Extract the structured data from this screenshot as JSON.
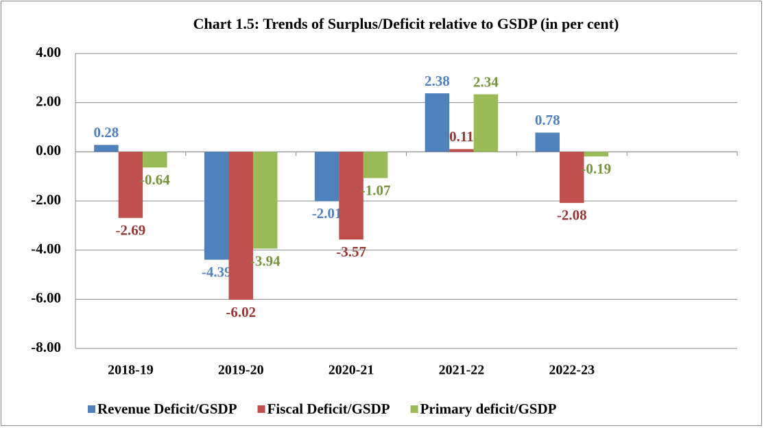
{
  "chart_data": {
    "type": "bar",
    "title": "Chart 1.5: Trends of Surplus/Deficit relative to GSDP (in per cent)",
    "categories": [
      "2018-19",
      "2019-20",
      "2020-21",
      "2021-22",
      "2022-23",
      null
    ],
    "series": [
      {
        "name": "Revenue Deficit/GSDP",
        "color": "#4f81bd",
        "label_color": "#4f81bd",
        "values": [
          0.28,
          -4.39,
          -2.01,
          2.38,
          0.78,
          null
        ]
      },
      {
        "name": "Fiscal Deficit/GSDP",
        "color": "#c0504d",
        "label_color": "#953735",
        "values": [
          -2.69,
          -6.02,
          -3.57,
          0.11,
          -2.08,
          null
        ]
      },
      {
        "name": "Primary deficit/GSDP",
        "color": "#9bbb59",
        "label_color": "#77933c",
        "values": [
          -0.64,
          -3.94,
          -1.07,
          2.34,
          -0.19,
          null
        ]
      }
    ],
    "ylim": [
      -8,
      4
    ],
    "yticks": [
      {
        "value": -8,
        "label": "-8.00"
      },
      {
        "value": -6,
        "label": "-6.00"
      },
      {
        "value": -4,
        "label": "-4.00"
      },
      {
        "value": -2,
        "label": "-2.00"
      },
      {
        "value": 0,
        "label": "0.00"
      },
      {
        "value": 2,
        "label": "2.00"
      },
      {
        "value": 4,
        "label": "4.00"
      }
    ],
    "grid": true,
    "legend": "bottom"
  }
}
